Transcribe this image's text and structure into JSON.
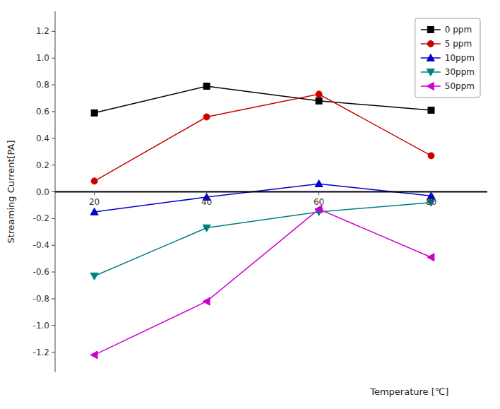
{
  "chart_data": {
    "type": "line",
    "title": "",
    "xlabel": "Temperature [℃]",
    "ylabel": "Streaming Current[PA]",
    "x": [
      20,
      40,
      60,
      80
    ],
    "series": [
      {
        "name": "0 ppm",
        "color": "#000000",
        "marker": "square",
        "values": [
          0.59,
          0.79,
          0.68,
          0.61
        ]
      },
      {
        "name": "5 ppm",
        "color": "#cc0000",
        "marker": "circle",
        "values": [
          0.08,
          0.56,
          0.73,
          0.27
        ]
      },
      {
        "name": "10ppm",
        "color": "#0000cc",
        "marker": "triangle-up",
        "values": [
          -0.15,
          -0.04,
          0.06,
          -0.03
        ]
      },
      {
        "name": "30ppm",
        "color": "#008080",
        "marker": "triangle-down",
        "values": [
          -0.63,
          -0.27,
          -0.15,
          -0.08
        ]
      },
      {
        "name": "50ppm",
        "color": "#cc00cc",
        "marker": "triangle-left",
        "values": [
          -1.22,
          -0.82,
          -0.13,
          -0.49
        ]
      }
    ],
    "xlim": [
      13,
      90
    ],
    "ylim": [
      -1.35,
      1.35
    ],
    "xticks": [
      20,
      40,
      60,
      80
    ],
    "yticks": [
      -1.2,
      {
        "value": -1.0,
        "label": "-1.0"
      },
      -0.8,
      -0.6,
      -0.4,
      -0.2,
      {
        "value": 0.0,
        "label": "0.0"
      },
      0.2,
      0.4,
      0.6,
      0.8,
      {
        "value": 1.0,
        "label": "1.0"
      },
      1.2
    ],
    "grid": false,
    "legend": "upper right"
  }
}
